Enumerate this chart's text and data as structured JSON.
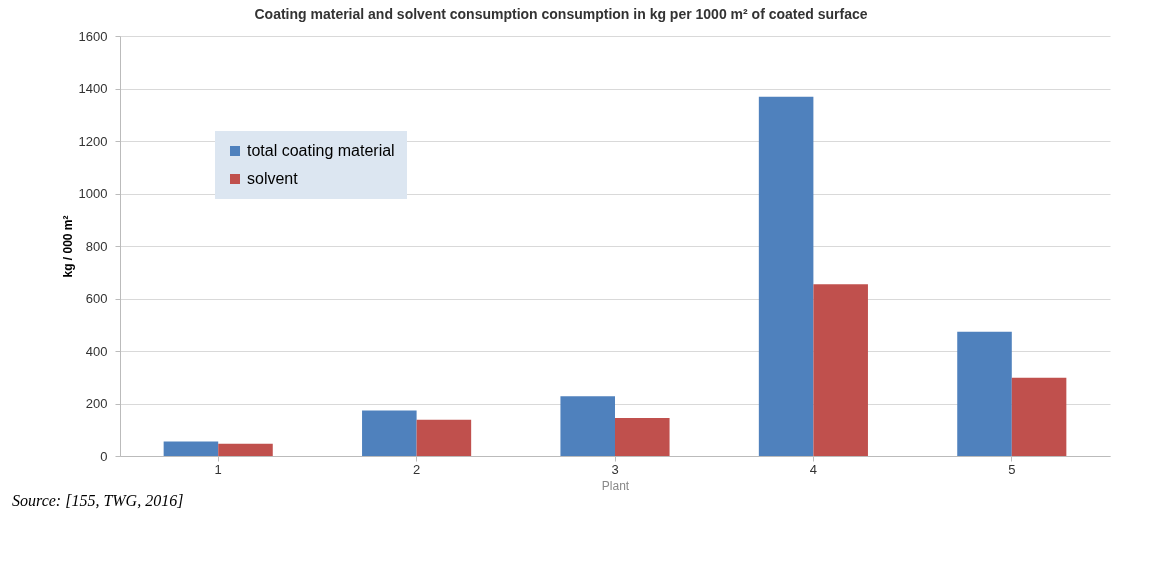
{
  "chart_data": {
    "type": "bar",
    "title": "Coating material and solvent consumption consumption in kg per 1000 m² of coated surface",
    "xlabel": "Plant",
    "ylabel": "kg / 000 m²",
    "categories": [
      "1",
      "2",
      "3",
      "4",
      "5"
    ],
    "series": [
      {
        "name": "total coating material",
        "color": "#4f81bd",
        "values": [
          55,
          173,
          228,
          1369,
          473
        ]
      },
      {
        "name": "solvent",
        "color": "#c0504d",
        "values": [
          47,
          138,
          145,
          654,
          298
        ]
      }
    ],
    "ylim": [
      0,
      1600
    ],
    "yticks": [
      0,
      200,
      400,
      600,
      800,
      1000,
      1200,
      1400,
      1600
    ],
    "grid": "y",
    "legend": "top left",
    "annotations": [
      "Source: [155, TWG, 2016]"
    ]
  }
}
